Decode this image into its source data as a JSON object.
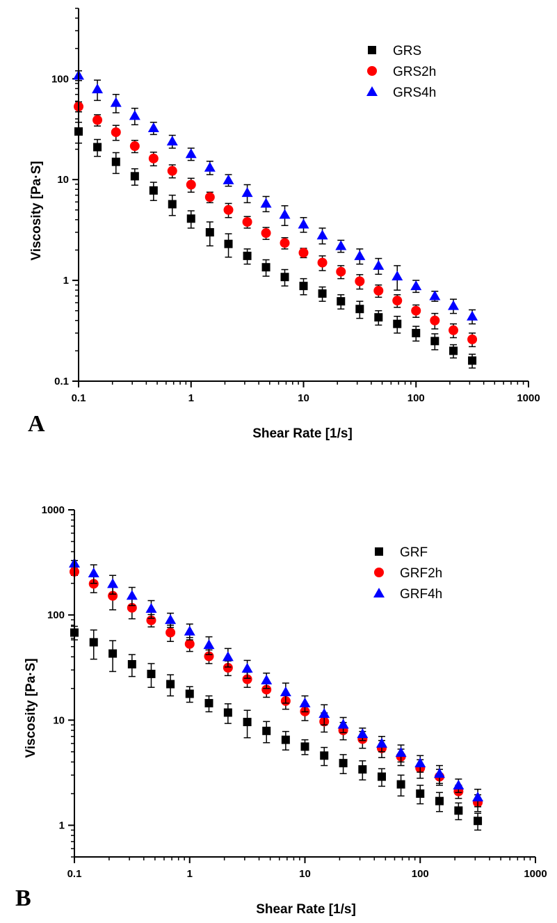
{
  "colors": {
    "GRS": "#000000",
    "GRS2h": "#ff0000",
    "GRS4h": "#0000ff",
    "GRF": "#000000",
    "GRF2h": "#ff0000",
    "GRF4h": "#0000ff"
  },
  "chart_data": [
    {
      "panel_label": "A",
      "type": "scatter",
      "xlabel": "Shear Rate [1/s]",
      "ylabel": "Viscosity [Pa·S]",
      "xscale": "log",
      "yscale": "log",
      "xlim": [
        0.1,
        1000
      ],
      "ylim": [
        0.1,
        500
      ],
      "xticks": [
        0.1,
        1,
        10,
        100,
        1000
      ],
      "xtick_labels": [
        "0.1",
        "1",
        "10",
        "100",
        "1000"
      ],
      "yticks": [
        0.1,
        1,
        10,
        100
      ],
      "ytick_labels": [
        "0.1",
        "1",
        "10",
        "100"
      ],
      "legend_position": "top-right",
      "grid": false,
      "x": [
        0.1,
        0.147,
        0.215,
        0.316,
        0.464,
        0.681,
        1,
        1.47,
        2.15,
        3.16,
        4.64,
        6.81,
        10,
        14.7,
        21.5,
        31.6,
        46.4,
        68.1,
        100,
        147,
        215,
        316
      ],
      "series": [
        {
          "name": "GRS",
          "marker": "square",
          "color": "#000000",
          "values": [
            30,
            21,
            15,
            10.8,
            7.8,
            5.7,
            4.1,
            3.0,
            2.3,
            1.75,
            1.35,
            1.08,
            0.88,
            0.74,
            0.62,
            0.52,
            0.43,
            0.37,
            0.3,
            0.25,
            0.2,
            0.16
          ],
          "errors": [
            7,
            4,
            3.5,
            2,
            1.6,
            1.3,
            0.8,
            0.8,
            0.6,
            0.3,
            0.25,
            0.2,
            0.16,
            0.12,
            0.1,
            0.1,
            0.07,
            0.07,
            0.05,
            0.045,
            0.03,
            0.025
          ]
        },
        {
          "name": "GRS2h",
          "marker": "circle",
          "color": "#ff0000",
          "values": [
            53,
            39,
            29.5,
            21.5,
            16.2,
            12.2,
            8.9,
            6.7,
            5.0,
            3.8,
            2.95,
            2.35,
            1.88,
            1.5,
            1.22,
            0.98,
            0.79,
            0.63,
            0.5,
            0.4,
            0.32,
            0.26
          ],
          "errors": [
            6,
            5,
            5,
            3,
            2.5,
            1.8,
            1.4,
            0.8,
            0.8,
            0.5,
            0.4,
            0.3,
            0.2,
            0.25,
            0.18,
            0.16,
            0.11,
            0.09,
            0.07,
            0.07,
            0.05,
            0.04
          ]
        },
        {
          "name": "GRS4h",
          "marker": "triangle",
          "color": "#0000ff",
          "values": [
            108,
            79,
            58,
            43,
            32.5,
            24,
            18,
            13.2,
            9.9,
            7.4,
            5.8,
            4.5,
            3.6,
            2.8,
            2.2,
            1.75,
            1.4,
            1.1,
            0.88,
            0.7,
            0.56,
            0.44
          ],
          "errors": [
            12,
            18,
            12,
            8,
            4.5,
            3.5,
            2.5,
            2,
            1.3,
            1.5,
            1,
            1,
            0.6,
            0.5,
            0.3,
            0.3,
            0.25,
            0.3,
            0.12,
            0.08,
            0.09,
            0.07
          ]
        }
      ]
    },
    {
      "panel_label": "B",
      "type": "scatter",
      "xlabel": "Shear Rate [1/s]",
      "ylabel": "Viscosity [Pa·S]",
      "xscale": "log",
      "yscale": "log",
      "xlim": [
        0.1,
        1000
      ],
      "ylim": [
        0.5,
        1000
      ],
      "xticks": [
        0.1,
        1,
        10,
        100,
        1000
      ],
      "xtick_labels": [
        "0.1",
        "1",
        "10",
        "100",
        "1000"
      ],
      "yticks": [
        1,
        10,
        100,
        1000
      ],
      "ytick_labels": [
        "1",
        "10",
        "100",
        "1000"
      ],
      "legend_position": "top-right",
      "grid": false,
      "x": [
        0.1,
        0.147,
        0.215,
        0.316,
        0.464,
        0.681,
        1,
        1.47,
        2.15,
        3.16,
        4.64,
        6.81,
        10,
        14.7,
        21.5,
        31.6,
        46.4,
        68.1,
        100,
        147,
        215,
        316
      ],
      "series": [
        {
          "name": "GRF",
          "marker": "square",
          "color": "#000000",
          "values": [
            68,
            55,
            43,
            34,
            27.5,
            22,
            17.8,
            14.5,
            11.8,
            9.6,
            7.9,
            6.5,
            5.6,
            4.6,
            3.9,
            3.4,
            2.9,
            2.45,
            2.0,
            1.7,
            1.38,
            1.1
          ],
          "errors": [
            10,
            17,
            14,
            8,
            7,
            5,
            3,
            2.5,
            2.5,
            2.8,
            1.8,
            1.3,
            0.9,
            0.9,
            0.8,
            0.7,
            0.55,
            0.55,
            0.4,
            0.35,
            0.25,
            0.2
          ]
        },
        {
          "name": "GRF2h",
          "marker": "circle",
          "color": "#ff0000",
          "values": [
            258,
            198,
            152,
            117,
            89,
            68,
            53,
            40.5,
            31.5,
            24.5,
            19.5,
            15.2,
            12.1,
            9.7,
            8.0,
            6.6,
            5.4,
            4.5,
            3.5,
            2.9,
            2.1,
            1.65
          ],
          "errors": [
            20,
            35,
            40,
            25,
            12,
            12,
            8,
            6,
            5,
            4,
            3,
            2.5,
            2.2,
            2,
            1.5,
            1.2,
            1,
            0.8,
            0.7,
            0.5,
            0.3,
            0.3
          ]
        },
        {
          "name": "GRF4h",
          "marker": "triangle",
          "color": "#0000ff",
          "values": [
            310,
            250,
            198,
            153,
            115,
            90,
            70,
            52,
            40,
            31,
            24,
            18.5,
            14.5,
            11.5,
            9.1,
            7.4,
            6.0,
            4.9,
            3.9,
            3.1,
            2.4,
            1.85
          ],
          "errors": [
            20,
            50,
            40,
            30,
            22,
            14,
            12,
            10,
            8,
            6,
            4,
            4,
            2.5,
            2.5,
            1.5,
            1,
            1,
            0.9,
            0.7,
            0.6,
            0.35,
            0.35
          ]
        }
      ]
    }
  ]
}
